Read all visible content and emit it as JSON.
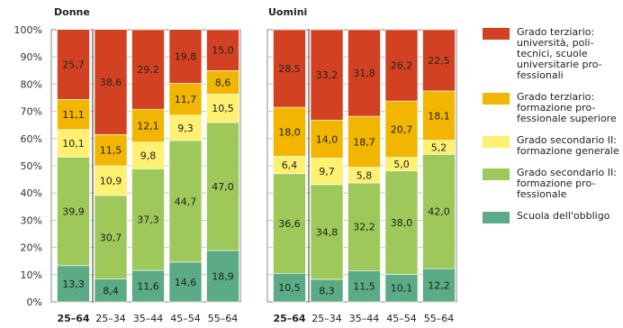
{
  "chart_data": [
    {
      "type": "bar",
      "stacked": true,
      "title": "Donne",
      "categories": [
        "25–64",
        "25–34",
        "35–44",
        "45–54",
        "55–64"
      ],
      "bold_category": "25–64",
      "ylim": [
        0,
        100
      ],
      "yticks": [
        "0%",
        "10%",
        "20%",
        "30%",
        "40%",
        "50%",
        "60%",
        "70%",
        "80%",
        "90%",
        "100%"
      ],
      "series": [
        {
          "name": "Scuola dell'obbligo",
          "color": "#5bab86",
          "values": [
            13.3,
            8.4,
            11.6,
            14.6,
            18.9
          ]
        },
        {
          "name": "Grado secondario II: formazione professionale",
          "color": "#9ec95a",
          "values": [
            39.9,
            30.7,
            37.3,
            44.7,
            47.0
          ]
        },
        {
          "name": "Grado secondario II: formazione generale",
          "color": "#fef071",
          "values": [
            10.1,
            10.9,
            9.8,
            9.3,
            10.5
          ]
        },
        {
          "name": "Grado terziario: formazione professionale superiore",
          "color": "#f2b600",
          "values": [
            11.1,
            11.5,
            12.1,
            11.7,
            8.6
          ]
        },
        {
          "name": "Grado terziario: università, politecnici, scuole universitarie professionali",
          "color": "#d24222",
          "values": [
            25.7,
            38.6,
            29.2,
            19.8,
            15.0
          ]
        }
      ]
    },
    {
      "type": "bar",
      "stacked": true,
      "title": "Uomini",
      "categories": [
        "25–64",
        "25–34",
        "35–44",
        "45–54",
        "55–64"
      ],
      "bold_category": "25–64",
      "ylim": [
        0,
        100
      ],
      "series": [
        {
          "name": "Scuola dell'obbligo",
          "color": "#5bab86",
          "values": [
            10.5,
            8.3,
            11.5,
            10.1,
            12.2
          ]
        },
        {
          "name": "Grado secondario II: formazione professionale",
          "color": "#9ec95a",
          "values": [
            36.6,
            34.8,
            32.2,
            38.0,
            42.0
          ]
        },
        {
          "name": "Grado secondario II: formazione generale",
          "color": "#fef071",
          "values": [
            6.4,
            9.7,
            5.8,
            5.0,
            5.2
          ]
        },
        {
          "name": "Grado terziario: formazione professionale superiore",
          "color": "#f2b600",
          "values": [
            18.0,
            14.0,
            18.7,
            20.7,
            18.1
          ]
        },
        {
          "name": "Grado terziario: università, politecnici, scuole universitarie professionali",
          "color": "#d24222",
          "values": [
            28.5,
            33.2,
            31.8,
            26.2,
            22.5
          ]
        }
      ]
    }
  ],
  "legend": [
    {
      "label": "Grado terziario:\nuniversità, poli-\ntecnici, scuole\nuniversitarie pro-\nfessionali",
      "color": "#d24222"
    },
    {
      "label": "Grado terziario:\nformazione pro-\nfessionale superiore",
      "color": "#f2b600"
    },
    {
      "label": "Grado secondario II:\nformazione generale",
      "color": "#fef071"
    },
    {
      "label": "Grado secondario II:\nformazione pro-\nfessionale",
      "color": "#9ec95a"
    },
    {
      "label": "Scuola dell'obbligo",
      "color": "#5bab86"
    }
  ]
}
